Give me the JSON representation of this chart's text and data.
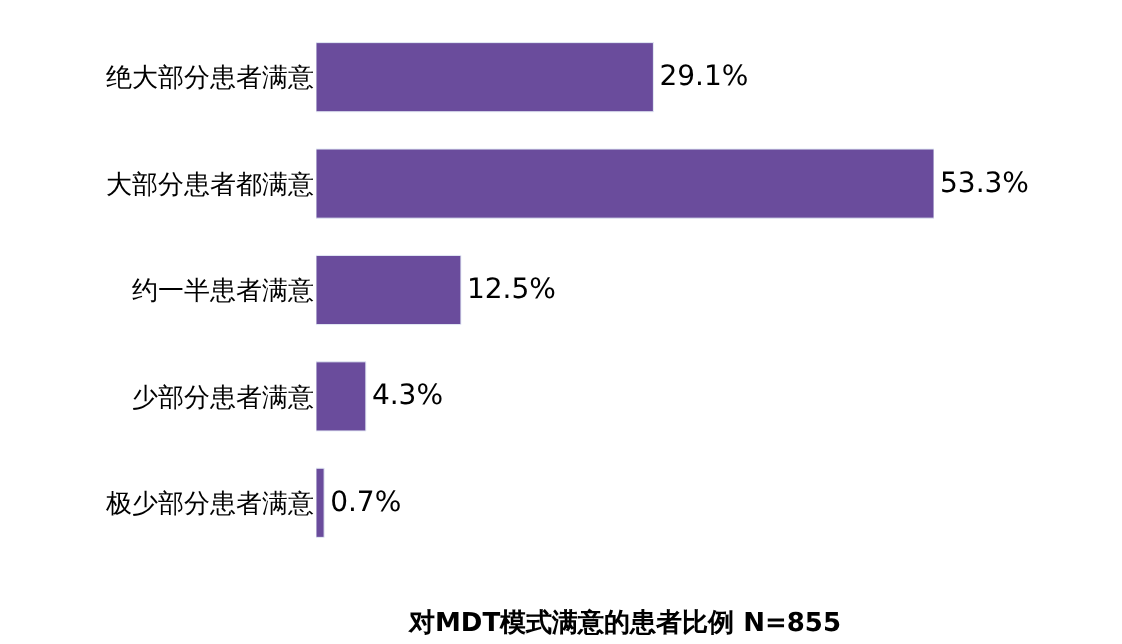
{
  "chart_data": {
    "type": "bar",
    "orientation": "horizontal",
    "title": "对MDT模式满意的患者比例 N=855",
    "categories": [
      "绝大部分患者满意",
      "大部分患者都满意",
      "约一半患者满意",
      "少部分患者满意",
      "极少部分患者满意"
    ],
    "values": [
      29.1,
      53.3,
      12.5,
      4.3,
      0.7
    ],
    "value_labels": [
      "29.1%",
      "53.3%",
      "12.5%",
      "4.3%",
      "0.7%"
    ],
    "color": "#6a4c9c"
  }
}
